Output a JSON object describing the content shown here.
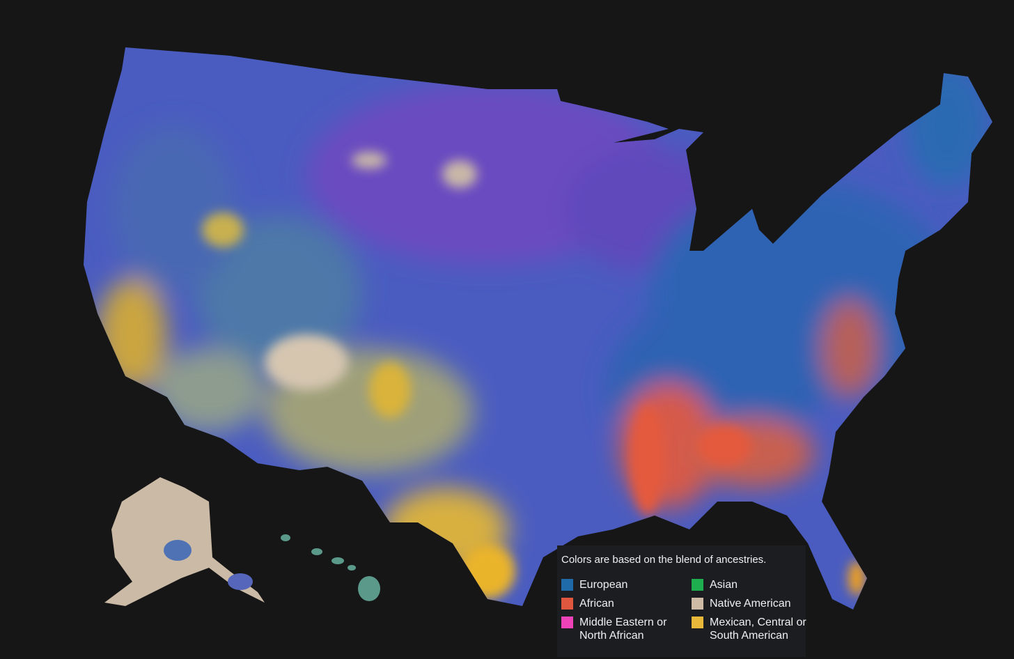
{
  "legend": {
    "title": "Colors are based on the blend of ancestries.",
    "items": [
      {
        "label": "European",
        "color": "#1f6aa8"
      },
      {
        "label": "Asian",
        "color": "#1fae4f"
      },
      {
        "label": "African",
        "color": "#e0573f"
      },
      {
        "label": "Native American",
        "color": "#cdbba5"
      },
      {
        "label": "Middle Eastern or North African",
        "color": "#ee42b8"
      },
      {
        "label": "Mexican, Central or South American",
        "color": "#e8b83a"
      }
    ]
  }
}
